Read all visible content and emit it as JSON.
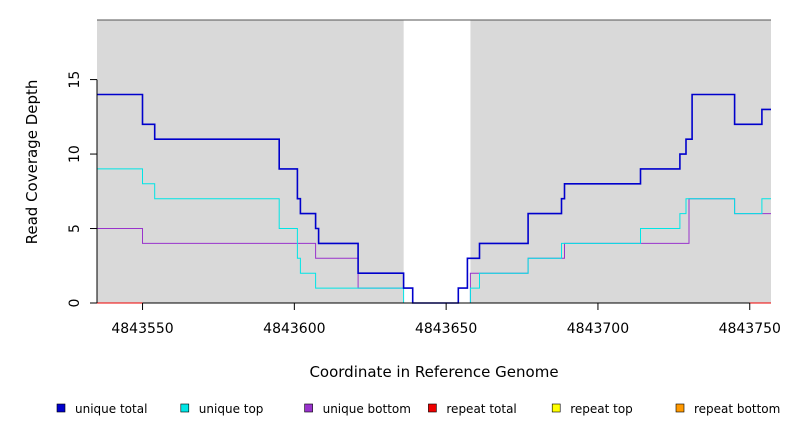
{
  "chart_data": {
    "type": "line",
    "title": "",
    "xlabel": "Coordinate in Reference Genome",
    "ylabel": "Read Coverage Depth",
    "xlim": [
      4843535,
      4843757
    ],
    "ylim": [
      0,
      19
    ],
    "x_ticks": [
      4843550,
      4843600,
      4843650,
      4843700,
      4843750
    ],
    "y_ticks": [
      0,
      5,
      10,
      15
    ],
    "shaded_regions": [
      [
        4843535,
        4843636
      ],
      [
        4843658,
        4843757
      ]
    ],
    "background_color": "#d9d9d9",
    "step_style": "step-after",
    "legend_position": "bottom",
    "series": [
      {
        "name": "unique total",
        "color": "#0000cc",
        "x": [
          4843535,
          4843550,
          4843554,
          4843595,
          4843601,
          4843602,
          4843607,
          4843608,
          4843621,
          4843636,
          4843639,
          4843654,
          4843657,
          4843661,
          4843677,
          4843688,
          4843689,
          4843714,
          4843727,
          4843729,
          4843731,
          4843745,
          4843754,
          4843757
        ],
        "y": [
          14,
          12,
          11,
          9,
          7,
          6,
          5,
          4,
          2,
          1,
          0,
          1,
          3,
          4,
          6,
          7,
          8,
          9,
          10,
          11,
          14,
          12,
          13,
          13
        ]
      },
      {
        "name": "unique top",
        "color": "#00e5e5",
        "x": [
          4843535,
          4843550,
          4843554,
          4843595,
          4843601,
          4843602,
          4843607,
          4843636,
          4843658,
          4843661,
          4843677,
          4843688,
          4843714,
          4843727,
          4843729,
          4843745,
          4843754,
          4843757
        ],
        "y": [
          9,
          8,
          7,
          5,
          3,
          2,
          1,
          0,
          1,
          2,
          3,
          4,
          5,
          6,
          7,
          6,
          7,
          7
        ]
      },
      {
        "name": "unique bottom",
        "color": "#9933cc",
        "x": [
          4843535,
          4843550,
          4843607,
          4843621,
          4843639,
          4843658,
          4843677,
          4843689,
          4843730,
          4843745,
          4843757
        ],
        "y": [
          5,
          4,
          3,
          1,
          0,
          2,
          3,
          4,
          7,
          6,
          6
        ]
      },
      {
        "name": "repeat total",
        "color": "#ee0000",
        "x": [
          4843535,
          4843757
        ],
        "y": [
          0,
          0
        ]
      },
      {
        "name": "repeat top",
        "color": "#ffff00",
        "x": [
          4843535,
          4843757
        ],
        "y": [
          0,
          0
        ]
      },
      {
        "name": "repeat bottom",
        "color": "#ff9900",
        "x": [
          4843535,
          4843757
        ],
        "y": [
          0,
          0
        ]
      }
    ]
  }
}
